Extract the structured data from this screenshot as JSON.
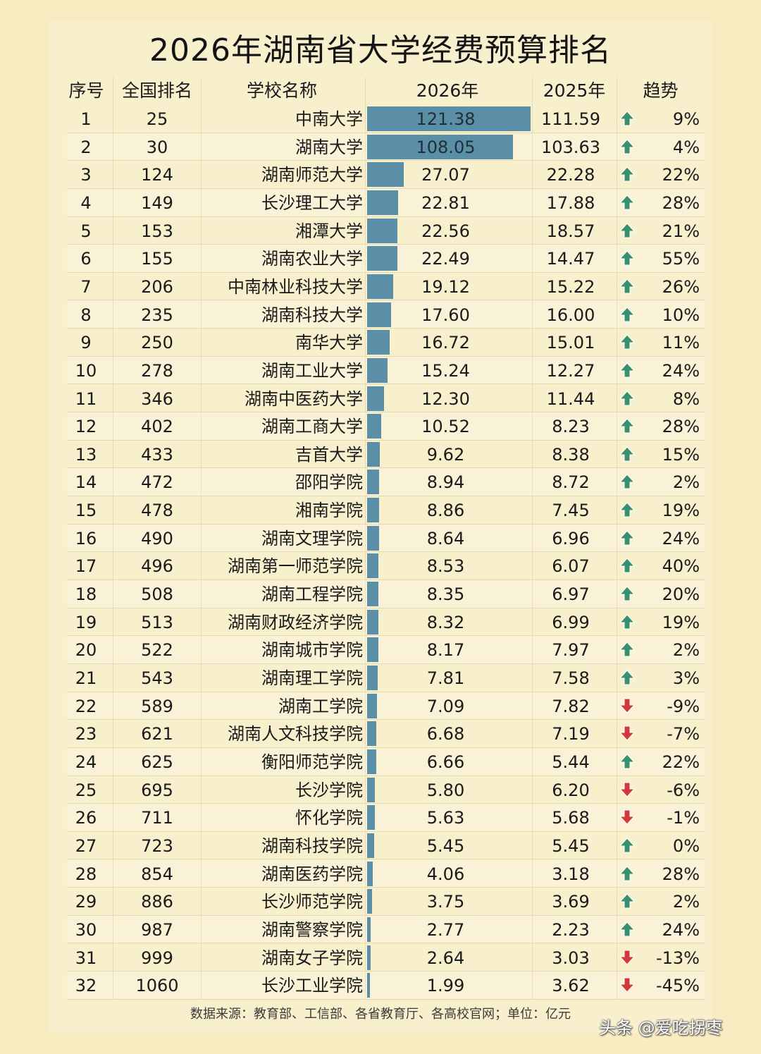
{
  "title": "2026年湖南省大学经费预算排名",
  "headers": {
    "no": "序号",
    "national_rank": "全国排名",
    "school": "学校名称",
    "y2026": "2026年",
    "y2025": "2025年",
    "trend": "趋势"
  },
  "colors": {
    "bar": "#5b8fa8",
    "up": "#3a8f6d",
    "down": "#d23a3a",
    "background": "#f7edc0"
  },
  "rows": [
    {
      "no": "1",
      "rank": "25",
      "name": "中南大学",
      "v2026": "121.38",
      "v2025": "111.59",
      "trend": "up",
      "pct": "9%"
    },
    {
      "no": "2",
      "rank": "30",
      "name": "湖南大学",
      "v2026": "108.05",
      "v2025": "103.63",
      "trend": "up",
      "pct": "4%"
    },
    {
      "no": "3",
      "rank": "124",
      "name": "湖南师范大学",
      "v2026": "27.07",
      "v2025": "22.28",
      "trend": "up",
      "pct": "22%"
    },
    {
      "no": "4",
      "rank": "149",
      "name": "长沙理工大学",
      "v2026": "22.81",
      "v2025": "17.88",
      "trend": "up",
      "pct": "28%"
    },
    {
      "no": "5",
      "rank": "153",
      "name": "湘潭大学",
      "v2026": "22.56",
      "v2025": "18.57",
      "trend": "up",
      "pct": "21%"
    },
    {
      "no": "6",
      "rank": "155",
      "name": "湖南农业大学",
      "v2026": "22.49",
      "v2025": "14.47",
      "trend": "up",
      "pct": "55%"
    },
    {
      "no": "7",
      "rank": "206",
      "name": "中南林业科技大学",
      "v2026": "19.12",
      "v2025": "15.22",
      "trend": "up",
      "pct": "26%"
    },
    {
      "no": "8",
      "rank": "235",
      "name": "湖南科技大学",
      "v2026": "17.60",
      "v2025": "16.00",
      "trend": "up",
      "pct": "10%"
    },
    {
      "no": "9",
      "rank": "250",
      "name": "南华大学",
      "v2026": "16.72",
      "v2025": "15.01",
      "trend": "up",
      "pct": "11%"
    },
    {
      "no": "10",
      "rank": "278",
      "name": "湖南工业大学",
      "v2026": "15.24",
      "v2025": "12.27",
      "trend": "up",
      "pct": "24%"
    },
    {
      "no": "11",
      "rank": "346",
      "name": "湖南中医药大学",
      "v2026": "12.30",
      "v2025": "11.44",
      "trend": "up",
      "pct": "8%"
    },
    {
      "no": "12",
      "rank": "402",
      "name": "湖南工商大学",
      "v2026": "10.52",
      "v2025": "8.23",
      "trend": "up",
      "pct": "28%"
    },
    {
      "no": "13",
      "rank": "433",
      "name": "吉首大学",
      "v2026": "9.62",
      "v2025": "8.38",
      "trend": "up",
      "pct": "15%"
    },
    {
      "no": "14",
      "rank": "472",
      "name": "邵阳学院",
      "v2026": "8.94",
      "v2025": "8.72",
      "trend": "up",
      "pct": "2%"
    },
    {
      "no": "15",
      "rank": "478",
      "name": "湘南学院",
      "v2026": "8.86",
      "v2025": "7.45",
      "trend": "up",
      "pct": "19%"
    },
    {
      "no": "16",
      "rank": "490",
      "name": "湖南文理学院",
      "v2026": "8.64",
      "v2025": "6.96",
      "trend": "up",
      "pct": "24%"
    },
    {
      "no": "17",
      "rank": "496",
      "name": "湖南第一师范学院",
      "v2026": "8.53",
      "v2025": "6.07",
      "trend": "up",
      "pct": "40%"
    },
    {
      "no": "18",
      "rank": "508",
      "name": "湖南工程学院",
      "v2026": "8.35",
      "v2025": "6.97",
      "trend": "up",
      "pct": "20%"
    },
    {
      "no": "19",
      "rank": "513",
      "name": "湖南财政经济学院",
      "v2026": "8.32",
      "v2025": "6.99",
      "trend": "up",
      "pct": "19%"
    },
    {
      "no": "20",
      "rank": "522",
      "name": "湖南城市学院",
      "v2026": "8.17",
      "v2025": "7.97",
      "trend": "up",
      "pct": "2%"
    },
    {
      "no": "21",
      "rank": "543",
      "name": "湖南理工学院",
      "v2026": "7.81",
      "v2025": "7.58",
      "trend": "up",
      "pct": "3%"
    },
    {
      "no": "22",
      "rank": "589",
      "name": "湖南工学院",
      "v2026": "7.09",
      "v2025": "7.82",
      "trend": "down",
      "pct": "-9%"
    },
    {
      "no": "23",
      "rank": "621",
      "name": "湖南人文科技学院",
      "v2026": "6.68",
      "v2025": "7.19",
      "trend": "down",
      "pct": "-7%"
    },
    {
      "no": "24",
      "rank": "625",
      "name": "衡阳师范学院",
      "v2026": "6.66",
      "v2025": "5.44",
      "trend": "up",
      "pct": "22%"
    },
    {
      "no": "25",
      "rank": "695",
      "name": "长沙学院",
      "v2026": "5.80",
      "v2025": "6.20",
      "trend": "down",
      "pct": "-6%"
    },
    {
      "no": "26",
      "rank": "711",
      "name": "怀化学院",
      "v2026": "5.63",
      "v2025": "5.68",
      "trend": "down",
      "pct": "-1%"
    },
    {
      "no": "27",
      "rank": "723",
      "name": "湖南科技学院",
      "v2026": "5.45",
      "v2025": "5.45",
      "trend": "up",
      "pct": "0%"
    },
    {
      "no": "28",
      "rank": "854",
      "name": "湖南医药学院",
      "v2026": "4.06",
      "v2025": "3.18",
      "trend": "up",
      "pct": "28%"
    },
    {
      "no": "29",
      "rank": "886",
      "name": "长沙师范学院",
      "v2026": "3.75",
      "v2025": "3.69",
      "trend": "up",
      "pct": "2%"
    },
    {
      "no": "30",
      "rank": "987",
      "name": "湖南警察学院",
      "v2026": "2.77",
      "v2025": "2.23",
      "trend": "up",
      "pct": "24%"
    },
    {
      "no": "31",
      "rank": "999",
      "name": "湖南女子学院",
      "v2026": "2.64",
      "v2025": "3.03",
      "trend": "down",
      "pct": "-13%"
    },
    {
      "no": "32",
      "rank": "1060",
      "name": "长沙工业学院",
      "v2026": "1.99",
      "v2025": "3.62",
      "trend": "down",
      "pct": "-45%"
    }
  ],
  "footer": "数据来源：教育部、工信部、各省教育厅、各高校官网；单位：亿元",
  "watermark": "头条 @爱吃拐枣"
}
